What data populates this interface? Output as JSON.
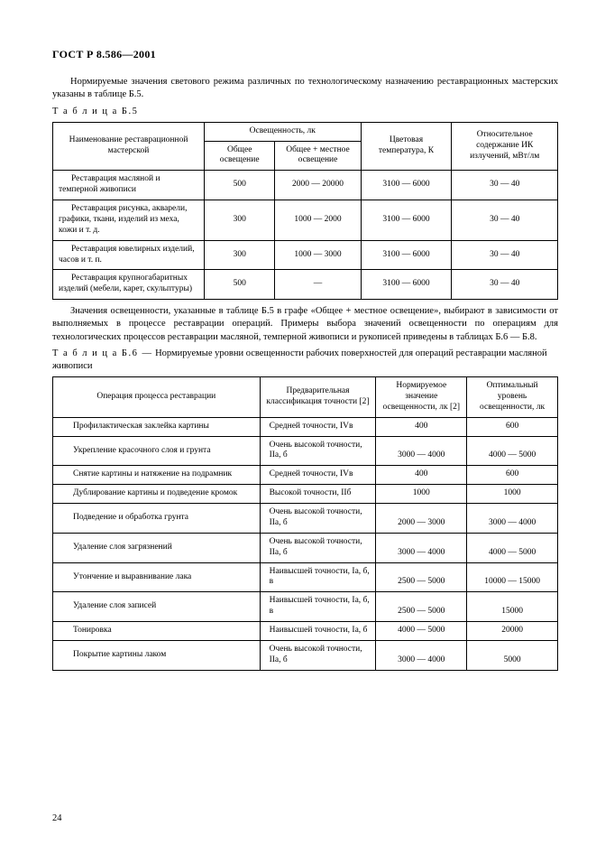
{
  "header": {
    "standard": "ГОСТ Р 8.586—2001"
  },
  "intro": "Нормируемые значения светового режима различных по технологическому назначению реставрационных мастерских указаны в таблице Б.5.",
  "table5": {
    "caption": "Т а б л и ц а Б.5",
    "columns": {
      "name": "Наименование реставрационной мастерской",
      "illum": "Освещенность, лк",
      "illum_general": "Общее освещение",
      "illum_combined": "Общее + местное освещение",
      "colortemp": "Цветовая температура, К",
      "ir": "Относительное содержание ИК излучений, мВт/лм"
    },
    "rows": [
      {
        "name": "Реставрация масляной и темперной живописи",
        "gen": "500",
        "comb": "2000 — 20000",
        "temp": "3100 — 6000",
        "ir": "30 — 40"
      },
      {
        "name": "Реставрация рисунка, акварели, графики, ткани, изделий из меха, кожи и т. д.",
        "gen": "300",
        "comb": "1000 — 2000",
        "temp": "3100 — 6000",
        "ir": "30 — 40"
      },
      {
        "name": "Реставрация ювелирных изделий, часов и т. п.",
        "gen": "300",
        "comb": "1000 — 3000",
        "temp": "3100 — 6000",
        "ir": "30 — 40"
      },
      {
        "name": "Реставрация крупногабаритных изделий (мебели, карет, скульптуры)",
        "gen": "500",
        "comb": "—",
        "temp": "3100 — 6000",
        "ir": "30 — 40"
      }
    ]
  },
  "mid": "Значения освещенности, указанные в таблице Б.5 в графе «Общее + местное освещение», выбирают в зависимости от выполняемых в процессе реставрации операций. Примеры выбора значений освещенности по операциям для технологических процессов реставрации масляной, темперной живописи и рукописей приведены в таблицах Б.6 — Б.8.",
  "table6": {
    "caption_prefix": "Т а б л и ц а Б.6 —",
    "caption_text": "Нормируемые уровни освещенности рабочих поверхностей для операций реставрации масляной живописи",
    "columns": {
      "op": "Операция процесса реставрации",
      "class": "Предварительная классификация точности [2]",
      "norm": "Нормируемое значение освещенности, лк [2]",
      "opt": "Оптимальный уровень освещенности, лк"
    },
    "rows": [
      {
        "op": "Профилактическая заклейка картины",
        "class": "Средней точности, IVв",
        "norm": "400",
        "opt": "600"
      },
      {
        "op": "Укрепление красочного слоя и грунта",
        "class": "Очень высокой точности, IIа, б",
        "norm": "3000 — 4000",
        "opt": "4000 — 5000"
      },
      {
        "op": "Снятие картины и натяжение на подрамник",
        "class": "Средней точности, IVв",
        "norm": "400",
        "opt": "600"
      },
      {
        "op": "Дублирование картины и подведение кромок",
        "class": "Высокой точности, IIб",
        "norm": "1000",
        "opt": "1000"
      },
      {
        "op": "Подведение и обработка грунта",
        "class": "Очень высокой точности, IIа, б",
        "norm": "2000 — 3000",
        "opt": "3000 — 4000"
      },
      {
        "op": "Удаление слоя загрязнений",
        "class": "Очень высокой точности, IIа, б",
        "norm": "3000 — 4000",
        "opt": "4000 — 5000"
      },
      {
        "op": "Утончение и выравнивание лака",
        "class": "Наивысшей точности, Iа, б, в",
        "norm": "2500 — 5000",
        "opt": "10000 — 15000"
      },
      {
        "op": "Удаление слоя записей",
        "class": "Наивысшей точности, Iа, б, в",
        "norm": "2500 — 5000",
        "opt": "15000"
      },
      {
        "op": "Тонировка",
        "class": "Наивысшей точности, Iа, б",
        "norm": "4000 — 5000",
        "opt": "20000"
      },
      {
        "op": "Покрытие картины лаком",
        "class": "Очень высокой точности, IIа, б",
        "norm": "3000 — 4000",
        "opt": "5000"
      }
    ]
  },
  "page_number": "24"
}
